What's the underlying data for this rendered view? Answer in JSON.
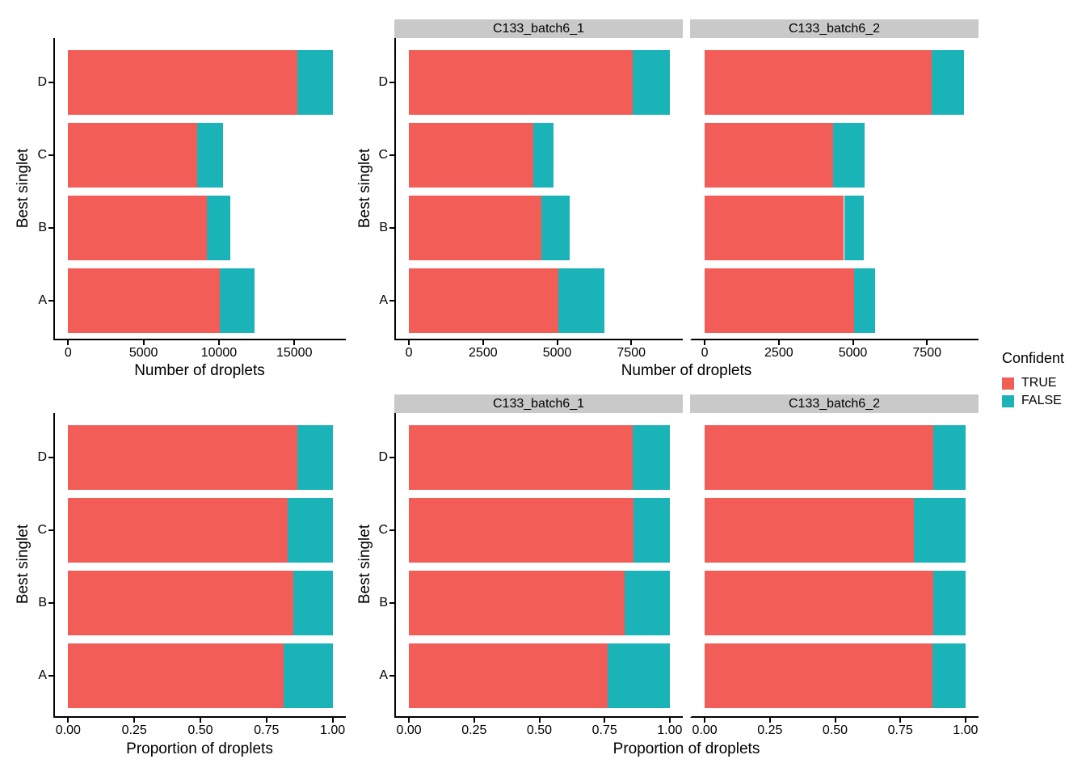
{
  "legend": {
    "title": "Confident",
    "items": [
      {
        "key": "true",
        "label": "TRUE"
      },
      {
        "key": "false",
        "label": "FALSE"
      }
    ]
  },
  "colors": {
    "true": "#F25D58",
    "false": "#1AB3B7",
    "strip_bg": "#C9C9C9",
    "axis": "#000000"
  },
  "axes": {
    "count_label": "Number of droplets",
    "prop_label": "Proportion of droplets",
    "y_label": "Best singlet"
  },
  "facet_labels": [
    "C133_batch6_1",
    "C133_batch6_2"
  ],
  "chart_data": [
    {
      "id": "counts-all",
      "type": "bar",
      "orientation": "horizontal",
      "stacked": true,
      "grid": false,
      "legend_position": "none",
      "xlabel": "Number of droplets",
      "ylabel": "Best singlet",
      "categories": [
        "D",
        "C",
        "B",
        "A"
      ],
      "series": [
        {
          "name": "TRUE",
          "values": [
            15210,
            8530,
            9180,
            10060
          ]
        },
        {
          "name": "FALSE",
          "values": [
            2330,
            1750,
            1600,
            2300
          ]
        }
      ],
      "totals": [
        17540,
        10280,
        10780,
        12360
      ],
      "xmax": 17540,
      "xlim": [
        0,
        17540
      ],
      "xticks": [
        {
          "v": 0,
          "label": "0"
        },
        {
          "v": 5000,
          "label": "5000"
        },
        {
          "v": 10000,
          "label": "10000"
        },
        {
          "v": 15000,
          "label": "15000"
        }
      ]
    },
    {
      "id": "counts-faceted",
      "type": "bar",
      "orientation": "horizontal",
      "stacked": true,
      "grid": false,
      "legend_position": "right",
      "xlabel": "Number of droplets",
      "ylabel": "Best singlet",
      "categories": [
        "D",
        "C",
        "B",
        "A"
      ],
      "facets": [
        {
          "label": "C133_batch6_1",
          "series": [
            {
              "name": "TRUE",
              "values": [
                7550,
                4200,
                4480,
                5030
              ]
            },
            {
              "name": "FALSE",
              "values": [
                1250,
                680,
                930,
                1570
              ]
            }
          ],
          "totals": [
            8800,
            4880,
            5410,
            6600
          ]
        },
        {
          "label": "C133_batch6_2",
          "series": [
            {
              "name": "TRUE",
              "values": [
                7660,
                4330,
                4700,
                5030
              ]
            },
            {
              "name": "FALSE",
              "values": [
                1080,
                1070,
                670,
                730
              ]
            }
          ],
          "totals": [
            8740,
            5400,
            5370,
            5760
          ]
        }
      ],
      "xmax": 8800,
      "xlim": [
        0,
        8800
      ],
      "xticks": [
        {
          "v": 0,
          "label": "0"
        },
        {
          "v": 2500,
          "label": "2500"
        },
        {
          "v": 5000,
          "label": "5000"
        },
        {
          "v": 7500,
          "label": "7500"
        }
      ]
    },
    {
      "id": "prop-all",
      "type": "bar",
      "orientation": "horizontal",
      "stacked": true,
      "grid": false,
      "legend_position": "none",
      "xlabel": "Proportion of droplets",
      "ylabel": "Best singlet",
      "categories": [
        "D",
        "C",
        "B",
        "A"
      ],
      "series": [
        {
          "name": "TRUE",
          "values": [
            0.867,
            0.83,
            0.852,
            0.814
          ]
        },
        {
          "name": "FALSE",
          "values": [
            0.133,
            0.17,
            0.148,
            0.186
          ]
        }
      ],
      "xmax": 1,
      "xlim": [
        0,
        1
      ],
      "xticks": [
        {
          "v": 0,
          "label": "0.00"
        },
        {
          "v": 0.25,
          "label": "0.25"
        },
        {
          "v": 0.5,
          "label": "0.50"
        },
        {
          "v": 0.75,
          "label": "0.75"
        },
        {
          "v": 1,
          "label": "1.00"
        }
      ]
    },
    {
      "id": "prop-faceted",
      "type": "bar",
      "orientation": "horizontal",
      "stacked": true,
      "grid": false,
      "legend_position": "none",
      "xlabel": "Proportion of droplets",
      "ylabel": "Best singlet",
      "categories": [
        "D",
        "C",
        "B",
        "A"
      ],
      "facets": [
        {
          "label": "C133_batch6_1",
          "series": [
            {
              "name": "TRUE",
              "values": [
                0.858,
                0.861,
                0.828,
                0.762
              ]
            },
            {
              "name": "FALSE",
              "values": [
                0.142,
                0.139,
                0.172,
                0.238
              ]
            }
          ]
        },
        {
          "label": "C133_batch6_2",
          "series": [
            {
              "name": "TRUE",
              "values": [
                0.876,
                0.802,
                0.875,
                0.873
              ]
            },
            {
              "name": "FALSE",
              "values": [
                0.124,
                0.198,
                0.125,
                0.127
              ]
            }
          ]
        }
      ],
      "xmax": 1,
      "xlim": [
        0,
        1
      ],
      "xticks": [
        {
          "v": 0,
          "label": "0.00"
        },
        {
          "v": 0.25,
          "label": "0.25"
        },
        {
          "v": 0.5,
          "label": "0.50"
        },
        {
          "v": 0.75,
          "label": "0.75"
        },
        {
          "v": 1,
          "label": "1.00"
        }
      ]
    }
  ]
}
